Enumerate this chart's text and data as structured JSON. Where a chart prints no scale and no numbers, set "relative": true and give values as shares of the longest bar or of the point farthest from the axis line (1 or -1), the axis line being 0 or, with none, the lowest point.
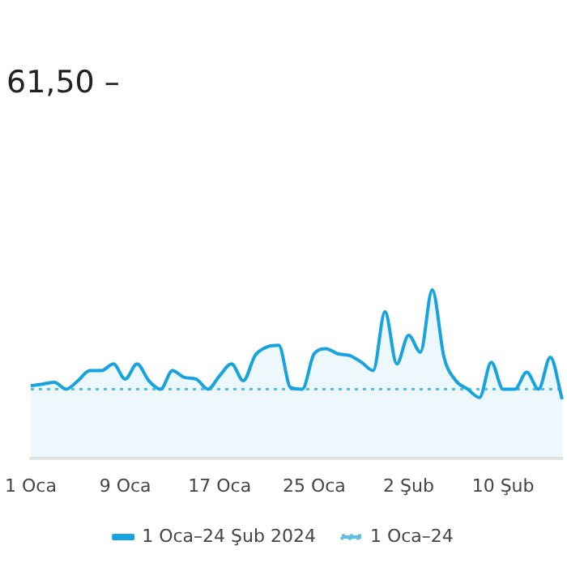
{
  "chart_data": {
    "type": "area",
    "title": "61,50 –",
    "relative": true,
    "legend": "bottom",
    "categories": [
      "1 Oca",
      null,
      null,
      null,
      null,
      null,
      null,
      null,
      "9 Oca",
      null,
      null,
      null,
      null,
      null,
      null,
      null,
      "17 Oca",
      null,
      null,
      null,
      null,
      null,
      null,
      null,
      "25 Oca",
      null,
      null,
      null,
      null,
      null,
      null,
      null,
      "2 Şub",
      null,
      null,
      null,
      null,
      null,
      null,
      null,
      "10 Şub",
      null,
      null,
      null,
      null,
      null
    ],
    "series": [
      {
        "name": "1 Oca–24 Şub 2024",
        "type": "area",
        "color": "#17a2e0",
        "line_style": "solid",
        "values": [
          0.43,
          0.44,
          0.45,
          0.41,
          0.46,
          0.52,
          0.52,
          0.56,
          0.47,
          0.56,
          0.46,
          0.41,
          0.52,
          0.48,
          0.47,
          0.41,
          0.49,
          0.56,
          0.46,
          0.61,
          0.66,
          0.67,
          0.42,
          0.41,
          0.62,
          0.65,
          0.62,
          0.61,
          0.57,
          0.52,
          0.87,
          0.56,
          0.73,
          0.63,
          1,
          0.6,
          0.46,
          0.41,
          0.36,
          0.57,
          0.41,
          0.41,
          0.51,
          0.41,
          0.6,
          0.35
        ]
      },
      {
        "name": "1 Oca–24",
        "type": "line",
        "color": "#5cbfea",
        "line_style": "dotted",
        "values": [
          0.41,
          0.41,
          0.41,
          0.41,
          0.41,
          0.41,
          0.41,
          0.41,
          0.41,
          0.41,
          0.41,
          0.41,
          0.41,
          0.41,
          0.41,
          0.41,
          0.41,
          0.41,
          0.41,
          0.41,
          0.41,
          0.41,
          0.41,
          0.41,
          0.41,
          0.41,
          0.41,
          0.41,
          0.41,
          0.41,
          0.41,
          0.41,
          0.41,
          0.41,
          0.41,
          0.41,
          0.41,
          0.41,
          0.41,
          0.41,
          0.41,
          0.41,
          0.41,
          0.41,
          0.41,
          0.41
        ]
      }
    ]
  }
}
